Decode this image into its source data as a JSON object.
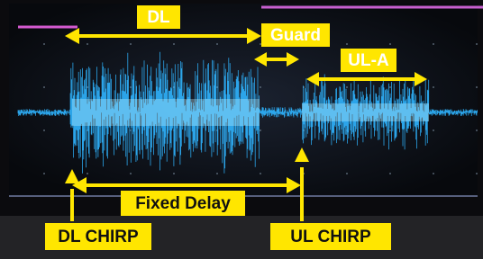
{
  "annotations": {
    "dl": "DL",
    "guard": "Guard",
    "ul_a": "UL-A",
    "fixed_delay": "Fixed Delay",
    "dl_chirp": "DL CHIRP",
    "ul_chirp": "UL CHIRP"
  }
}
